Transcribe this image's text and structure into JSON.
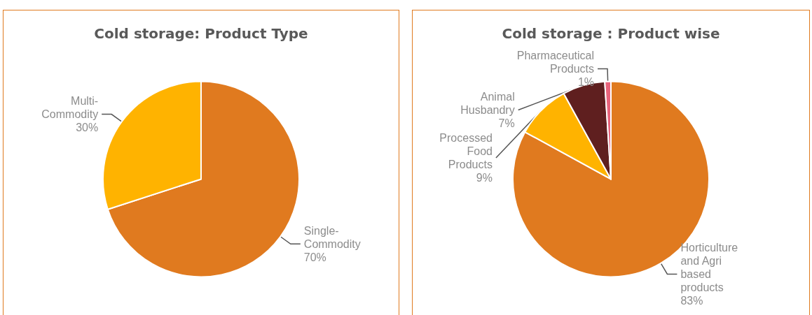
{
  "chart_data": [
    {
      "type": "pie",
      "title": "Cold storage: Product Type",
      "categories": [
        "Single-Commodity",
        "Multi-Commodity"
      ],
      "values": [
        70,
        30
      ],
      "value_labels": [
        "70%",
        "30%"
      ],
      "colors": [
        "#e07a1f",
        "#ffb300"
      ]
    },
    {
      "type": "pie",
      "title": "Cold storage : Product wise",
      "categories": [
        "Horticulture and Agri based products",
        "Processed Food Products",
        "Animal Husbandry",
        "Pharmaceutical Products"
      ],
      "values": [
        83,
        9,
        7,
        1
      ],
      "value_labels": [
        "83%",
        "9%",
        "7%",
        "1%"
      ],
      "colors": [
        "#e07a1f",
        "#ffb300",
        "#5f1f1f",
        "#e8637b"
      ]
    }
  ]
}
